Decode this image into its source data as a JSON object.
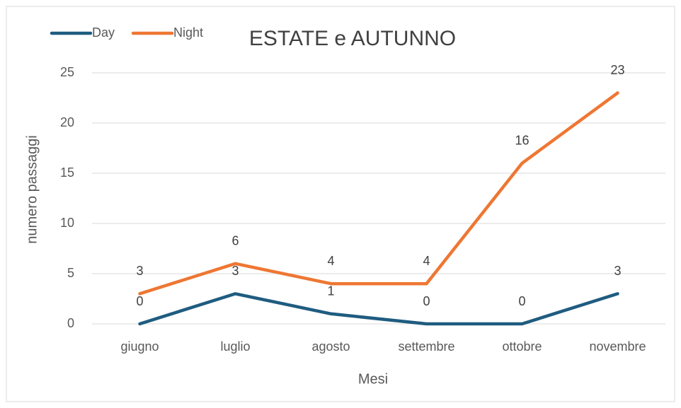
{
  "chart_data": {
    "type": "line",
    "title": "ESTATE e AUTUNNO",
    "x_label": "Mesi",
    "y_label": "numero passaggi",
    "categories": [
      "giugno",
      "luglio",
      "agosto",
      "settembre",
      "ottobre",
      "novembre"
    ],
    "series": [
      {
        "name": "Day",
        "color": "#1f5c80",
        "values": [
          0,
          3,
          1,
          0,
          0,
          3
        ]
      },
      {
        "name": "Night",
        "color": "#ee7733",
        "values": [
          3,
          6,
          4,
          4,
          16,
          23
        ]
      }
    ],
    "ylim": [
      0,
      25
    ],
    "yticks": [
      0,
      5,
      10,
      15,
      20,
      25
    ],
    "grid": true,
    "legend": "top-left"
  }
}
